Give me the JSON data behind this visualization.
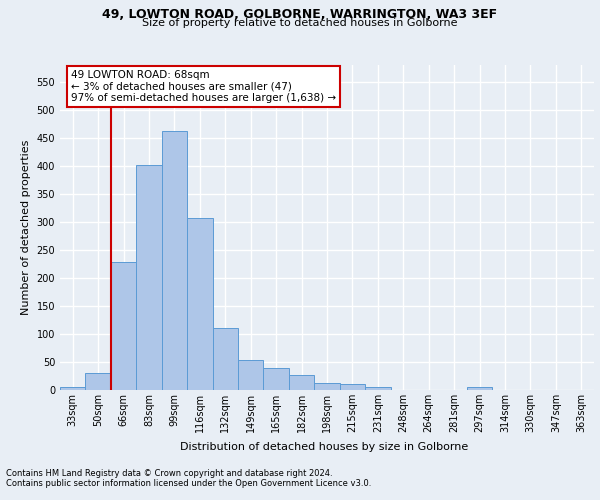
{
  "title1": "49, LOWTON ROAD, GOLBORNE, WARRINGTON, WA3 3EF",
  "title2": "Size of property relative to detached houses in Golborne",
  "xlabel": "Distribution of detached houses by size in Golborne",
  "ylabel": "Number of detached properties",
  "footer1": "Contains HM Land Registry data © Crown copyright and database right 2024.",
  "footer2": "Contains public sector information licensed under the Open Government Licence v3.0.",
  "bin_labels": [
    "33sqm",
    "50sqm",
    "66sqm",
    "83sqm",
    "99sqm",
    "116sqm",
    "132sqm",
    "149sqm",
    "165sqm",
    "182sqm",
    "198sqm",
    "215sqm",
    "231sqm",
    "248sqm",
    "264sqm",
    "281sqm",
    "297sqm",
    "314sqm",
    "330sqm",
    "347sqm",
    "363sqm"
  ],
  "bar_values": [
    5,
    30,
    228,
    402,
    463,
    307,
    110,
    53,
    39,
    26,
    12,
    11,
    5,
    0,
    0,
    0,
    5,
    0,
    0,
    0,
    0
  ],
  "bar_color": "#aec6e8",
  "bar_edge_color": "#5b9bd5",
  "annotation_line1": "49 LOWTON ROAD: 68sqm",
  "annotation_line2": "← 3% of detached houses are smaller (47)",
  "annotation_line3": "97% of semi-detached houses are larger (1,638) →",
  "annotation_box_color": "#ffffff",
  "annotation_box_edge": "#cc0000",
  "vline_color": "#cc0000",
  "ylim": [
    0,
    580
  ],
  "bg_color": "#e8eef5",
  "grid_color": "#ffffff",
  "title1_fontsize": 9,
  "title2_fontsize": 8,
  "ylabel_fontsize": 8,
  "xlabel_fontsize": 8,
  "tick_fontsize": 7,
  "footer_fontsize": 6,
  "annotation_fontsize": 7.5,
  "vline_x": 1.5
}
